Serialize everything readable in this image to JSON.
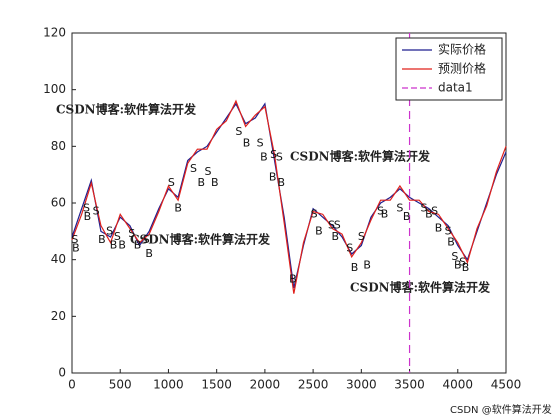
{
  "chart_data": {
    "type": "line",
    "x": [
      0,
      100,
      200,
      300,
      400,
      500,
      600,
      700,
      800,
      900,
      1000,
      1100,
      1200,
      1300,
      1400,
      1500,
      1600,
      1700,
      1800,
      1900,
      2000,
      2100,
      2200,
      2300,
      2400,
      2500,
      2600,
      2700,
      2800,
      2900,
      3000,
      3100,
      3200,
      3300,
      3400,
      3500,
      3600,
      3700,
      3800,
      3900,
      4000,
      4100,
      4200,
      4300,
      4400,
      4500
    ],
    "series": [
      {
        "name": "实际价格",
        "color": "#1f1f8f",
        "values": [
          48,
          58,
          68,
          50,
          48,
          55,
          52,
          45,
          50,
          58,
          65,
          62,
          75,
          78,
          80,
          85,
          90,
          95,
          88,
          90,
          95,
          75,
          55,
          30,
          45,
          58,
          55,
          52,
          48,
          42,
          45,
          55,
          60,
          62,
          65,
          62,
          60,
          58,
          55,
          52,
          45,
          40,
          50,
          60,
          70,
          78
        ]
      },
      {
        "name": "预测价格",
        "color": "#e0201b",
        "values": [
          47,
          56,
          67,
          52,
          46,
          56,
          51,
          46,
          49,
          57,
          66,
          61,
          74,
          79,
          79,
          86,
          89,
          96,
          87,
          91,
          94,
          77,
          53,
          28,
          46,
          57,
          56,
          51,
          49,
          41,
          46,
          54,
          61,
          61,
          66,
          61,
          61,
          57,
          56,
          51,
          46,
          39,
          51,
          59,
          71,
          80
        ]
      }
    ],
    "vline": {
      "name": "data1",
      "x": 3500,
      "color": "#cc33cc"
    },
    "annotations": [
      {
        "text": "S",
        "x": 30,
        "y": 47
      },
      {
        "text": "B",
        "x": 40,
        "y": 44
      },
      {
        "text": "S",
        "x": 150,
        "y": 58
      },
      {
        "text": "B",
        "x": 160,
        "y": 55
      },
      {
        "text": "S",
        "x": 250,
        "y": 57
      },
      {
        "text": "B",
        "x": 310,
        "y": 47
      },
      {
        "text": "S",
        "x": 390,
        "y": 50
      },
      {
        "text": "B",
        "x": 430,
        "y": 45
      },
      {
        "text": "S",
        "x": 470,
        "y": 48
      },
      {
        "text": "B",
        "x": 520,
        "y": 45
      },
      {
        "text": "S",
        "x": 620,
        "y": 49
      },
      {
        "text": "B",
        "x": 680,
        "y": 45
      },
      {
        "text": "S",
        "x": 770,
        "y": 47
      },
      {
        "text": "B",
        "x": 800,
        "y": 42
      },
      {
        "text": "S",
        "x": 1030,
        "y": 67
      },
      {
        "text": "B",
        "x": 1100,
        "y": 58
      },
      {
        "text": "S",
        "x": 1260,
        "y": 72
      },
      {
        "text": "B",
        "x": 1340,
        "y": 67
      },
      {
        "text": "S",
        "x": 1410,
        "y": 71
      },
      {
        "text": "B",
        "x": 1480,
        "y": 67
      },
      {
        "text": "S",
        "x": 1730,
        "y": 85
      },
      {
        "text": "B",
        "x": 1810,
        "y": 81
      },
      {
        "text": "S",
        "x": 1950,
        "y": 81
      },
      {
        "text": "B",
        "x": 1990,
        "y": 76
      },
      {
        "text": "S",
        "x": 2090,
        "y": 77
      },
      {
        "text": "S",
        "x": 2150,
        "y": 76
      },
      {
        "text": "B",
        "x": 2080,
        "y": 69
      },
      {
        "text": "B",
        "x": 2170,
        "y": 67
      },
      {
        "text": "B",
        "x": 2290,
        "y": 33
      },
      {
        "text": "S",
        "x": 2510,
        "y": 56
      },
      {
        "text": "B",
        "x": 2560,
        "y": 50
      },
      {
        "text": "S",
        "x": 2690,
        "y": 52
      },
      {
        "text": "S",
        "x": 2750,
        "y": 52
      },
      {
        "text": "B",
        "x": 2730,
        "y": 48
      },
      {
        "text": "S",
        "x": 2880,
        "y": 44
      },
      {
        "text": "B",
        "x": 2930,
        "y": 37
      },
      {
        "text": "S",
        "x": 3000,
        "y": 48
      },
      {
        "text": "B",
        "x": 3060,
        "y": 38
      },
      {
        "text": "S",
        "x": 3200,
        "y": 57
      },
      {
        "text": "B",
        "x": 3240,
        "y": 56
      },
      {
        "text": "S",
        "x": 3400,
        "y": 58
      },
      {
        "text": "B",
        "x": 3470,
        "y": 55
      },
      {
        "text": "S",
        "x": 3650,
        "y": 58
      },
      {
        "text": "B",
        "x": 3700,
        "y": 56
      },
      {
        "text": "S",
        "x": 3760,
        "y": 57
      },
      {
        "text": "B",
        "x": 3800,
        "y": 51
      },
      {
        "text": "S",
        "x": 3900,
        "y": 50
      },
      {
        "text": "B",
        "x": 3930,
        "y": 46
      },
      {
        "text": "S",
        "x": 3970,
        "y": 41
      },
      {
        "text": "B",
        "x": 4000,
        "y": 38
      },
      {
        "text": "S",
        "x": 4050,
        "y": 39
      },
      {
        "text": "B",
        "x": 4080,
        "y": 37
      }
    ],
    "xlim": [
      0,
      4500
    ],
    "ylim": [
      0,
      120
    ],
    "xticks": [
      0,
      500,
      1000,
      1500,
      2000,
      2500,
      3000,
      3500,
      4000,
      4500
    ],
    "yticks": [
      0,
      20,
      40,
      60,
      80,
      100,
      120
    ],
    "legend": "northeast",
    "watermarks": [
      "CSDN博客:软件算法开发",
      "CSDN博客:软件算法开发",
      "CSDN博客:软件算法开发",
      "CSDN博客:软件算法开发",
      "CSDN @软件算法开发"
    ]
  }
}
